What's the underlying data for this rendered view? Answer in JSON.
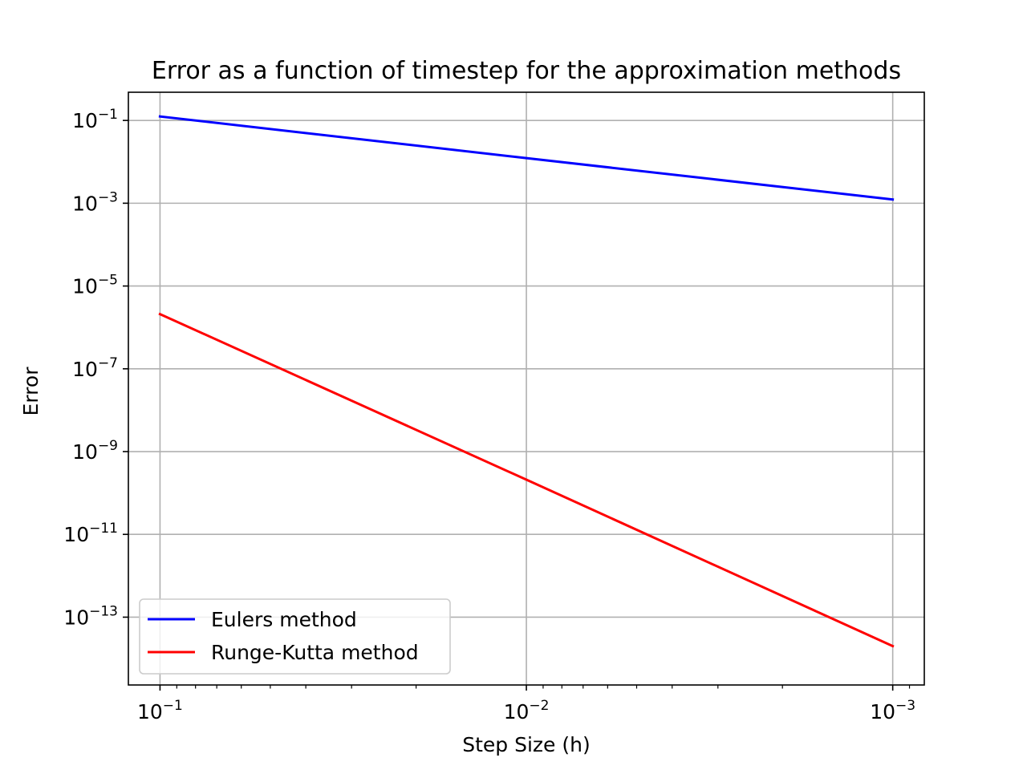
{
  "chart_data": {
    "type": "line",
    "title": "Error as a function of timestep for the approximation methods",
    "xlabel": "Step Size (h)",
    "ylabel": "Error",
    "xscale": "log",
    "yscale": "log",
    "x_inverted": true,
    "xlim": [
      0.122,
      0.00082
    ],
    "ylim": [
      2.3e-15,
      0.48
    ],
    "grid": true,
    "legend_position": "lower-left",
    "x": [
      0.1,
      0.01,
      0.001
    ],
    "x_ticks": [
      {
        "value": 0.1,
        "base": "10",
        "exp": "−1"
      },
      {
        "value": 0.01,
        "base": "10",
        "exp": "−2"
      },
      {
        "value": 0.001,
        "base": "10",
        "exp": "−3"
      }
    ],
    "y_ticks": [
      {
        "value": 0.1,
        "base": "10",
        "exp": "−1"
      },
      {
        "value": 0.001,
        "base": "10",
        "exp": "−3"
      },
      {
        "value": 1e-05,
        "base": "10",
        "exp": "−5"
      },
      {
        "value": 1e-07,
        "base": "10",
        "exp": "−7"
      },
      {
        "value": 1e-09,
        "base": "10",
        "exp": "−9"
      },
      {
        "value": 1e-11,
        "base": "10",
        "exp": "−11"
      },
      {
        "value": 1e-13,
        "base": "10",
        "exp": "−13"
      }
    ],
    "series": [
      {
        "name": "Eulers method",
        "color": "#0000ff",
        "values": [
          0.125,
          0.0123,
          0.00123
        ]
      },
      {
        "name": "Runge-Kutta method",
        "color": "#ff0000",
        "values": [
          2.1e-06,
          2.1e-10,
          2e-14
        ]
      }
    ]
  }
}
